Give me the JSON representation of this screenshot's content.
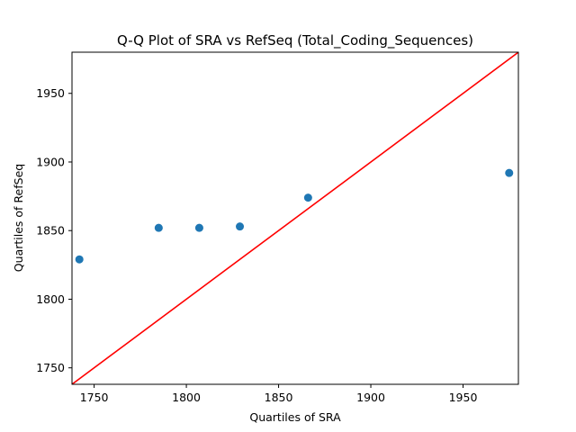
{
  "chart_data": {
    "type": "scatter",
    "title": "Q-Q Plot of SRA vs RefSeq (Total_Coding_Sequences)",
    "xlabel": "Quartiles of SRA",
    "ylabel": "Quartiles of RefSeq",
    "xlim": [
      1738,
      1980
    ],
    "ylim": [
      1738,
      1980
    ],
    "xticks": [
      1750,
      1800,
      1850,
      1900,
      1950
    ],
    "yticks": [
      1750,
      1800,
      1850,
      1900,
      1950
    ],
    "grid": false,
    "series": [
      {
        "points": [
          {
            "x": 1742,
            "y": 1829
          },
          {
            "x": 1785,
            "y": 1852
          },
          {
            "x": 1807,
            "y": 1852
          },
          {
            "x": 1829,
            "y": 1853
          },
          {
            "x": 1866,
            "y": 1874
          },
          {
            "x": 1975,
            "y": 1892
          }
        ],
        "color": "#1f77b4"
      }
    ],
    "reference_line": {
      "from": [
        1738,
        1738
      ],
      "to": [
        1980,
        1980
      ],
      "color": "#ff0000"
    }
  }
}
